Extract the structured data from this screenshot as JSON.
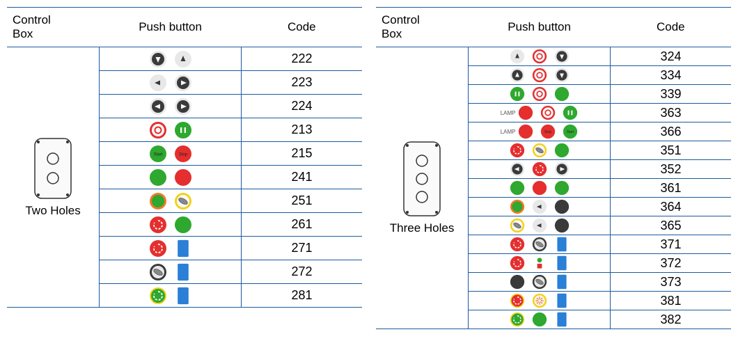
{
  "colors": {
    "border": "#1a5a9e",
    "dark": "#3a3a3a",
    "darker": "#222222",
    "light": "#e8e8e8",
    "white": "#f8f8f8",
    "red": "#e52e2e",
    "redRing": "#f05a5a",
    "green": "#2ea82e",
    "greenRing": "#5ccf5c",
    "yellow": "#f2d21a",
    "blue": "#2a7fd6",
    "orange": "#f07a2a"
  },
  "tables": [
    {
      "side": "left",
      "headers": {
        "box": "Control\nBox",
        "pb": "Push button",
        "code": "Code"
      },
      "boxLabel": "Two Holes",
      "boxHoles": 2,
      "rows": [
        {
          "code": "222",
          "buttons": [
            {
              "type": "arrow",
              "dir": "down",
              "bg": "dark",
              "ring": "light",
              "fg": "white"
            },
            {
              "type": "arrow",
              "dir": "up",
              "bg": "light",
              "ring": "light",
              "fg": "dark"
            }
          ]
        },
        {
          "code": "223",
          "buttons": [
            {
              "type": "arrow",
              "dir": "left",
              "bg": "light",
              "ring": "light",
              "fg": "dark"
            },
            {
              "type": "arrow",
              "dir": "right",
              "bg": "dark",
              "ring": "light",
              "fg": "white"
            }
          ]
        },
        {
          "code": "224",
          "buttons": [
            {
              "type": "arrow",
              "dir": "left",
              "bg": "dark",
              "ring": "light",
              "fg": "white"
            },
            {
              "type": "arrow",
              "dir": "right",
              "bg": "dark",
              "ring": "light",
              "fg": "white"
            }
          ]
        },
        {
          "code": "213",
          "buttons": [
            {
              "type": "ringO",
              "bg": "white",
              "ring": "red",
              "fg": "red"
            },
            {
              "type": "bars",
              "bg": "green",
              "ring": "green",
              "fg": "white"
            }
          ]
        },
        {
          "code": "215",
          "buttons": [
            {
              "type": "text",
              "label": "Start",
              "bg": "green",
              "ring": "green",
              "fg": "darker"
            },
            {
              "type": "text",
              "label": "Stop",
              "bg": "red",
              "ring": "red",
              "fg": "darker"
            }
          ]
        },
        {
          "code": "241",
          "buttons": [
            {
              "type": "solid",
              "bg": "green",
              "ring": "green"
            },
            {
              "type": "solid",
              "bg": "red",
              "ring": "red"
            }
          ]
        },
        {
          "code": "251",
          "buttons": [
            {
              "type": "solid",
              "bg": "green",
              "ring": "orange"
            },
            {
              "type": "key",
              "bg": "white",
              "ring": "yellow"
            }
          ]
        },
        {
          "code": "261",
          "buttons": [
            {
              "type": "estop",
              "bg": "red",
              "ring": "red"
            },
            {
              "type": "solid",
              "bg": "green",
              "ring": "green"
            }
          ]
        },
        {
          "code": "271",
          "buttons": [
            {
              "type": "estop",
              "bg": "red",
              "ring": "red"
            },
            {
              "type": "block",
              "bg": "blue"
            }
          ]
        },
        {
          "code": "272",
          "buttons": [
            {
              "type": "key",
              "bg": "light",
              "ring": "dark"
            },
            {
              "type": "block",
              "bg": "blue"
            }
          ]
        },
        {
          "code": "281",
          "buttons": [
            {
              "type": "estop",
              "bg": "green",
              "ring": "yellow"
            },
            {
              "type": "block",
              "bg": "blue"
            }
          ]
        }
      ]
    },
    {
      "side": "right",
      "headers": {
        "box": "Control\nBox",
        "pb": "Push button",
        "code": "Code"
      },
      "boxLabel": "Three Holes",
      "boxHoles": 3,
      "rows": [
        {
          "code": "324",
          "buttons": [
            {
              "type": "arrow",
              "dir": "up",
              "bg": "light",
              "ring": "light",
              "fg": "dark"
            },
            {
              "type": "ringO",
              "bg": "white",
              "ring": "red",
              "fg": "red"
            },
            {
              "type": "arrow",
              "dir": "down",
              "bg": "dark",
              "ring": "light",
              "fg": "white"
            }
          ]
        },
        {
          "code": "334",
          "buttons": [
            {
              "type": "arrow",
              "dir": "up",
              "bg": "dark",
              "ring": "light",
              "fg": "white"
            },
            {
              "type": "ringO",
              "bg": "white",
              "ring": "red",
              "fg": "red"
            },
            {
              "type": "arrow",
              "dir": "down",
              "bg": "dark",
              "ring": "light",
              "fg": "white"
            }
          ]
        },
        {
          "code": "339",
          "buttons": [
            {
              "type": "bars",
              "bg": "green",
              "ring": "green",
              "fg": "white"
            },
            {
              "type": "ringO",
              "bg": "white",
              "ring": "red",
              "fg": "red"
            },
            {
              "type": "solid",
              "bg": "green",
              "ring": "green"
            }
          ]
        },
        {
          "code": "363",
          "lamp": true,
          "buttons": [
            {
              "type": "solid",
              "bg": "red",
              "ring": "red"
            },
            {
              "type": "ringO",
              "bg": "white",
              "ring": "red",
              "fg": "red"
            },
            {
              "type": "bars",
              "bg": "green",
              "ring": "green",
              "fg": "white"
            }
          ]
        },
        {
          "code": "366",
          "lamp": true,
          "buttons": [
            {
              "type": "solid",
              "bg": "red",
              "ring": "red"
            },
            {
              "type": "text",
              "label": "Stop",
              "bg": "red",
              "ring": "red",
              "fg": "darker"
            },
            {
              "type": "text",
              "label": "Start",
              "bg": "green",
              "ring": "green",
              "fg": "darker"
            }
          ]
        },
        {
          "code": "351",
          "buttons": [
            {
              "type": "estop",
              "bg": "red",
              "ring": "red"
            },
            {
              "type": "key",
              "bg": "white",
              "ring": "yellow"
            },
            {
              "type": "solid",
              "bg": "green",
              "ring": "green"
            }
          ]
        },
        {
          "code": "352",
          "buttons": [
            {
              "type": "arrow",
              "dir": "left",
              "bg": "dark",
              "ring": "light",
              "fg": "white"
            },
            {
              "type": "estop",
              "bg": "red",
              "ring": "red"
            },
            {
              "type": "arrow",
              "dir": "right",
              "bg": "dark",
              "ring": "light",
              "fg": "white"
            }
          ]
        },
        {
          "code": "361",
          "buttons": [
            {
              "type": "solid",
              "bg": "green",
              "ring": "green"
            },
            {
              "type": "solid",
              "bg": "red",
              "ring": "red"
            },
            {
              "type": "solid",
              "bg": "green",
              "ring": "green"
            }
          ]
        },
        {
          "code": "364",
          "buttons": [
            {
              "type": "solid",
              "bg": "green",
              "ring": "orange"
            },
            {
              "type": "arrow",
              "dir": "left",
              "bg": "light",
              "ring": "light",
              "fg": "dark"
            },
            {
              "type": "solid",
              "bg": "dark",
              "ring": "dark"
            }
          ]
        },
        {
          "code": "365",
          "buttons": [
            {
              "type": "key",
              "bg": "white",
              "ring": "yellow"
            },
            {
              "type": "arrow",
              "dir": "left",
              "bg": "light",
              "ring": "light",
              "fg": "dark"
            },
            {
              "type": "solid",
              "bg": "dark",
              "ring": "dark"
            }
          ]
        },
        {
          "code": "371",
          "buttons": [
            {
              "type": "estop",
              "bg": "red",
              "ring": "red"
            },
            {
              "type": "key",
              "bg": "light",
              "ring": "dark"
            },
            {
              "type": "block",
              "bg": "blue"
            }
          ]
        },
        {
          "code": "372",
          "buttons": [
            {
              "type": "estop",
              "bg": "red",
              "ring": "red"
            },
            {
              "type": "tiny",
              "bg": "green",
              "ring": "red"
            },
            {
              "type": "block",
              "bg": "blue"
            }
          ]
        },
        {
          "code": "373",
          "buttons": [
            {
              "type": "solid",
              "bg": "dark",
              "ring": "dark"
            },
            {
              "type": "key",
              "bg": "light",
              "ring": "dark"
            },
            {
              "type": "block",
              "bg": "blue"
            }
          ]
        },
        {
          "code": "381",
          "buttons": [
            {
              "type": "estop",
              "bg": "red",
              "ring": "yellow"
            },
            {
              "type": "gear",
              "bg": "white",
              "ring": "yellow",
              "fg": "orange"
            },
            {
              "type": "block",
              "bg": "blue"
            }
          ]
        },
        {
          "code": "382",
          "buttons": [
            {
              "type": "estop",
              "bg": "green",
              "ring": "yellow"
            },
            {
              "type": "solid",
              "bg": "green",
              "ring": "green"
            },
            {
              "type": "block",
              "bg": "blue"
            }
          ]
        }
      ]
    }
  ]
}
